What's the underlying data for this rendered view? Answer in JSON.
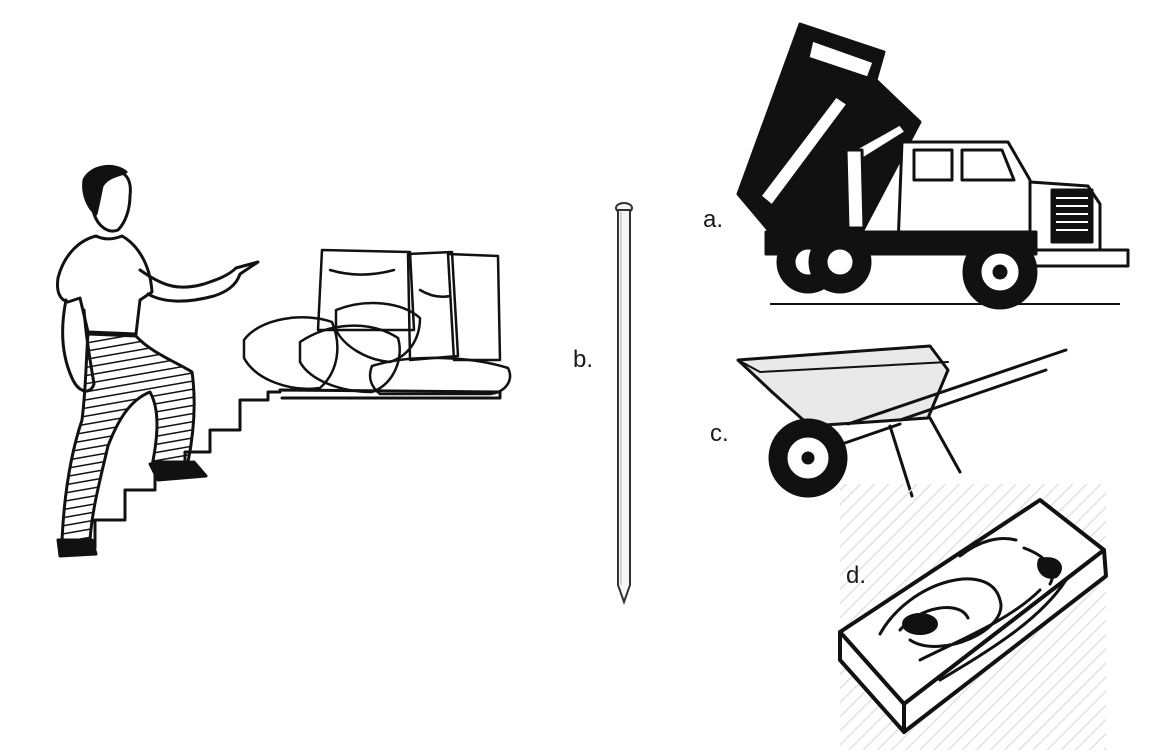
{
  "labels": {
    "a": "a.",
    "b": "b.",
    "c": "c.",
    "d": "d."
  },
  "figures": {
    "person_on_stairs": "man-climbing-stairs-pointing-at-sacks",
    "a": "dump-truck",
    "b": "nail",
    "c": "wheelbarrow",
    "d": "wooden-plank"
  },
  "colors": {
    "ink": "#111111",
    "paper": "#ffffff",
    "hatch": "#dddddd"
  }
}
